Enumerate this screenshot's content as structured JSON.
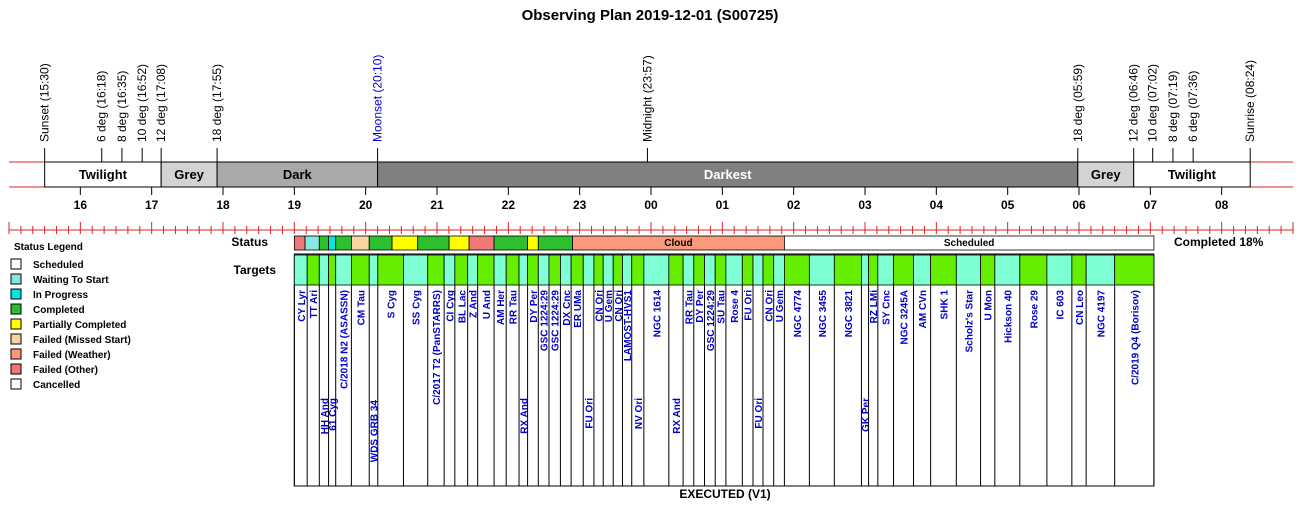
{
  "chart_data": {
    "type": "timeline",
    "title": "Observing Plan 2019-12-01 (S00725)",
    "events": [
      {
        "label": "Sunset (15:30)",
        "t": 15.5,
        "color": "#000000"
      },
      {
        "label": "6 deg (16:18)",
        "t": 16.3,
        "color": "#000000"
      },
      {
        "label": "8 deg (16:35)",
        "t": 16.583,
        "color": "#000000"
      },
      {
        "label": "10 deg (16:52)",
        "t": 16.867,
        "color": "#000000"
      },
      {
        "label": "12 deg (17:08)",
        "t": 17.133,
        "color": "#000000"
      },
      {
        "label": "18 deg (17:55)",
        "t": 17.917,
        "color": "#000000"
      },
      {
        "label": "Moonset (20:10)",
        "t": 20.167,
        "color": "#0000cc"
      },
      {
        "label": "Midnight (23:57)",
        "t": 23.95,
        "color": "#000000"
      },
      {
        "label": "18 deg (05:59)",
        "t": 29.983,
        "color": "#000000"
      },
      {
        "label": "12 deg (06:46)",
        "t": 30.767,
        "color": "#000000"
      },
      {
        "label": "10 deg (07:02)",
        "t": 31.033,
        "color": "#000000"
      },
      {
        "label": "8 deg (07:19)",
        "t": 31.317,
        "color": "#000000"
      },
      {
        "label": "6 deg (07:36)",
        "t": 31.6,
        "color": "#000000"
      },
      {
        "label": "Sunrise (08:24)",
        "t": 32.4,
        "color": "#000000"
      }
    ],
    "bands": [
      {
        "label": "Twilight",
        "start": 15.5,
        "end": 17.133,
        "color": "#ffffff"
      },
      {
        "label": "Grey",
        "start": 17.133,
        "end": 17.917,
        "color": "#d3d3d3"
      },
      {
        "label": "Dark",
        "start": 17.917,
        "end": 20.167,
        "color": "#a9a9a9"
      },
      {
        "label": "Darkest",
        "start": 20.167,
        "end": 29.983,
        "color": "#808080"
      },
      {
        "label": "Grey",
        "start": 29.983,
        "end": 30.767,
        "color": "#d3d3d3"
      },
      {
        "label": "Twilight",
        "start": 30.767,
        "end": 32.4,
        "color": "#ffffff"
      }
    ],
    "hour_labels": [
      "16",
      "17",
      "18",
      "19",
      "20",
      "21",
      "22",
      "23",
      "00",
      "01",
      "02",
      "03",
      "04",
      "05",
      "06",
      "07",
      "08"
    ],
    "status_row_label": "Status",
    "targets_row_label": "Targets",
    "completed_text": "Completed 18%",
    "footer": "EXECUTED (V1)",
    "status_segments": [
      {
        "start": 19.0,
        "end": 19.15,
        "status": "Failed (Other)",
        "label": ""
      },
      {
        "start": 19.15,
        "end": 19.35,
        "status": "Waiting To Start",
        "label": ""
      },
      {
        "start": 19.35,
        "end": 19.48,
        "status": "Completed",
        "label": ""
      },
      {
        "start": 19.48,
        "end": 19.58,
        "status": "In Progress",
        "label": ""
      },
      {
        "start": 19.58,
        "end": 19.8,
        "status": "Completed",
        "label": ""
      },
      {
        "start": 19.8,
        "end": 20.05,
        "status": "Failed (Missed Start)",
        "label": ""
      },
      {
        "start": 20.05,
        "end": 20.37,
        "status": "Completed",
        "label": ""
      },
      {
        "start": 20.37,
        "end": 20.73,
        "status": "Partially Completed",
        "label": ""
      },
      {
        "start": 20.73,
        "end": 21.17,
        "status": "Completed",
        "label": ""
      },
      {
        "start": 21.17,
        "end": 21.45,
        "status": "Partially Completed",
        "label": ""
      },
      {
        "start": 21.45,
        "end": 21.8,
        "status": "Failed (Other)",
        "label": ""
      },
      {
        "start": 21.8,
        "end": 22.27,
        "status": "Completed",
        "label": ""
      },
      {
        "start": 22.27,
        "end": 22.42,
        "status": "Partially Completed",
        "label": ""
      },
      {
        "start": 22.42,
        "end": 22.9,
        "status": "Completed",
        "label": ""
      },
      {
        "start": 22.9,
        "end": 25.87,
        "status": "Failed (Weather)",
        "label": "Cloud"
      },
      {
        "start": 25.87,
        "end": 31.05,
        "status": "Scheduled",
        "label": "Scheduled"
      }
    ],
    "targets": [
      {
        "name": "CY Lyr",
        "start": 19.0,
        "end": 19.18,
        "row": 1
      },
      {
        "name": "TT Ari",
        "start": 19.18,
        "end": 19.35,
        "row": 1
      },
      {
        "name": "HH And",
        "start": 19.35,
        "end": 19.48,
        "row": 2
      },
      {
        "name": "61 Cyg",
        "start": 19.48,
        "end": 19.58,
        "row": 2
      },
      {
        "name": "C/2018 N2 (ASASSN)",
        "start": 19.58,
        "end": 19.8,
        "row": 1
      },
      {
        "name": "CM Tau",
        "start": 19.8,
        "end": 20.05,
        "row": 1
      },
      {
        "name": "WDS GRB 34",
        "start": 20.05,
        "end": 20.17,
        "row": 3
      },
      {
        "name": "S Cyg",
        "start": 20.17,
        "end": 20.53,
        "row": 1
      },
      {
        "name": "SS Cyg",
        "start": 20.53,
        "end": 20.87,
        "row": 1
      },
      {
        "name": "C/2017 T2 (PanSTARRS)",
        "start": 20.87,
        "end": 21.1,
        "row": 1
      },
      {
        "name": "CI Cyg",
        "start": 21.1,
        "end": 21.25,
        "row": 1
      },
      {
        "name": "BL Lac",
        "start": 21.25,
        "end": 21.43,
        "row": 1
      },
      {
        "name": "Z And",
        "start": 21.43,
        "end": 21.57,
        "row": 1
      },
      {
        "name": "U And",
        "start": 21.57,
        "end": 21.8,
        "row": 1
      },
      {
        "name": "AM Her",
        "start": 21.8,
        "end": 21.97,
        "row": 1
      },
      {
        "name": "RR Tau",
        "start": 21.97,
        "end": 22.15,
        "row": 1
      },
      {
        "name": "RX And",
        "start": 22.15,
        "end": 22.27,
        "row": 2
      },
      {
        "name": "DY Per",
        "start": 22.27,
        "end": 22.42,
        "row": 1
      },
      {
        "name": "GSC 1224:29",
        "start": 22.42,
        "end": 22.57,
        "row": 1
      },
      {
        "name": "GSC 1224:29",
        "start": 22.57,
        "end": 22.73,
        "row": 1
      },
      {
        "name": "DX Cnc",
        "start": 22.73,
        "end": 22.88,
        "row": 1
      },
      {
        "name": "ER UMa",
        "start": 22.88,
        "end": 23.05,
        "row": 1
      },
      {
        "name": "FU Ori",
        "start": 23.05,
        "end": 23.2,
        "row": 2
      },
      {
        "name": "CN Ori",
        "start": 23.2,
        "end": 23.33,
        "row": 1
      },
      {
        "name": "U Gem",
        "start": 23.33,
        "end": 23.47,
        "row": 1
      },
      {
        "name": "CN Ori",
        "start": 23.47,
        "end": 23.6,
        "row": 1
      },
      {
        "name": "LAMOST-HVS1",
        "start": 23.6,
        "end": 23.73,
        "row": 1
      },
      {
        "name": "NV Ori",
        "start": 23.73,
        "end": 23.9,
        "row": 2
      },
      {
        "name": "NGC 1614",
        "start": 23.9,
        "end": 24.25,
        "row": 1
      },
      {
        "name": "RX And",
        "start": 24.25,
        "end": 24.45,
        "row": 2
      },
      {
        "name": "RR Tau",
        "start": 24.45,
        "end": 24.6,
        "row": 1
      },
      {
        "name": "DY Per",
        "start": 24.6,
        "end": 24.75,
        "row": 1
      },
      {
        "name": "GSC 1224:29",
        "start": 24.75,
        "end": 24.9,
        "row": 1
      },
      {
        "name": "SU Tau",
        "start": 24.9,
        "end": 25.05,
        "row": 1
      },
      {
        "name": "Rose 4",
        "start": 25.05,
        "end": 25.28,
        "row": 1
      },
      {
        "name": "FU Ori",
        "start": 25.28,
        "end": 25.43,
        "row": 1
      },
      {
        "name": "FU Ori",
        "start": 25.43,
        "end": 25.57,
        "row": 2
      },
      {
        "name": "CN Ori",
        "start": 25.57,
        "end": 25.72,
        "row": 1
      },
      {
        "name": "U Gem",
        "start": 25.72,
        "end": 25.87,
        "row": 1
      },
      {
        "name": "NGC 4774",
        "start": 25.87,
        "end": 26.22,
        "row": 1
      },
      {
        "name": "NGC 3455",
        "start": 26.22,
        "end": 26.57,
        "row": 1
      },
      {
        "name": "NGC 3821",
        "start": 26.57,
        "end": 26.95,
        "row": 1
      },
      {
        "name": "GK Per",
        "start": 26.95,
        "end": 27.05,
        "row": 2
      },
      {
        "name": "RZ LMi",
        "start": 27.05,
        "end": 27.18,
        "row": 1
      },
      {
        "name": "SY Cnc",
        "start": 27.18,
        "end": 27.4,
        "row": 1
      },
      {
        "name": "NGC 3245A",
        "start": 27.4,
        "end": 27.68,
        "row": 1
      },
      {
        "name": "AM CVn",
        "start": 27.68,
        "end": 27.92,
        "row": 1
      },
      {
        "name": "SHK 1",
        "start": 27.92,
        "end": 28.28,
        "row": 1
      },
      {
        "name": "Scholz's Star",
        "start": 28.28,
        "end": 28.62,
        "row": 1
      },
      {
        "name": "U Mon",
        "start": 28.62,
        "end": 28.82,
        "row": 1
      },
      {
        "name": "Hickson 40",
        "start": 28.82,
        "end": 29.17,
        "row": 1
      },
      {
        "name": "Rose 29",
        "start": 29.17,
        "end": 29.55,
        "row": 1
      },
      {
        "name": "IC 603",
        "start": 29.55,
        "end": 29.9,
        "row": 1
      },
      {
        "name": "CN Leo",
        "start": 29.9,
        "end": 30.1,
        "row": 1
      },
      {
        "name": "NGC 4197",
        "start": 30.1,
        "end": 30.5,
        "row": 1
      },
      {
        "name": "C/2019 Q4 (Borisov)",
        "start": 30.5,
        "end": 31.05,
        "row": 1
      }
    ],
    "legend_title": "Status Legend",
    "legend": [
      {
        "label": "Scheduled",
        "color": "#ffffff"
      },
      {
        "label": "Waiting To Start",
        "color": "#87e8df"
      },
      {
        "label": "In Progress",
        "color": "#00e5e5"
      },
      {
        "label": "Completed",
        "color": "#2dbf2d"
      },
      {
        "label": "Partially Completed",
        "color": "#ffff00"
      },
      {
        "label": "Failed (Missed Start)",
        "color": "#fcd4a0"
      },
      {
        "label": "Failed (Weather)",
        "color": "#fa9a7a"
      },
      {
        "label": "Failed (Other)",
        "color": "#f07878"
      },
      {
        "label": "Cancelled",
        "color": "#ffffff"
      }
    ],
    "target_colors": [
      "#7fffd4",
      "#66ee00"
    ],
    "colors": {
      "red_line": "#e02020",
      "event_blue": "#0000cc"
    }
  }
}
